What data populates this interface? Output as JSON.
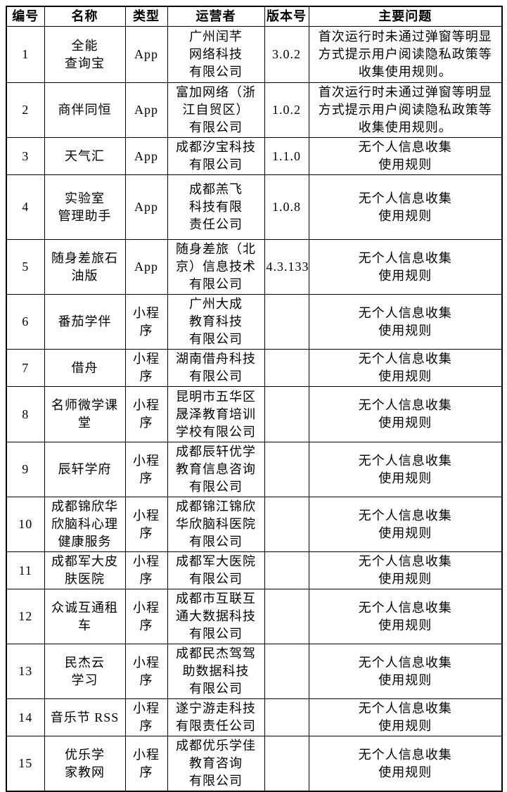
{
  "table": {
    "columns": [
      {
        "label": "编号"
      },
      {
        "label": "名称"
      },
      {
        "label": "类型"
      },
      {
        "label": "运营者"
      },
      {
        "label": "版本号"
      },
      {
        "label": "主要问题"
      }
    ],
    "rows": [
      {
        "number": "1",
        "name": "全能\n查询宝",
        "type": "App",
        "operator": "广州闰芊\n网络科技\n有限公司",
        "version": "3.0.2",
        "issue": "首次运行时未通过弹窗等明显\n方式提示用户阅读隐私政策等\n收集使用规则。"
      },
      {
        "number": "2",
        "name": "商伴同恒",
        "type": "App",
        "operator": "富加网络（浙\n江自贸区）\n有限公司",
        "version": "1.0.2",
        "issue": "首次运行时未通过弹窗等明显\n方式提示用户阅读隐私政策等\n收集使用规则。"
      },
      {
        "number": "3",
        "name": "天气汇",
        "type": "App",
        "operator": "成都汐宝科技\n有限公司",
        "version": "1.1.0",
        "issue": "无个人信息收集\n使用规则"
      },
      {
        "number": "4",
        "name": "实验室\n管理助手",
        "type": "App",
        "operator": "成都羔飞\n科技有限\n责任公司",
        "version": "1.0.8",
        "issue": "无个人信息收集\n使用规则"
      },
      {
        "number": "5",
        "name": "随身差旅石\n油版",
        "type": "App",
        "operator": "随身差旅（北\n京）信息技术\n有限公司",
        "version": "4.3.133",
        "issue": "无个人信息收集\n使用规则"
      },
      {
        "number": "6",
        "name": "番茄学伴",
        "type": "小程\n序",
        "operator": "广州大成\n教育科技\n有限公司",
        "version": "",
        "issue": "无个人信息收集\n使用规则"
      },
      {
        "number": "7",
        "name": "借舟",
        "type": "小程\n序",
        "operator": "湖南借舟科技\n有限公司",
        "version": "",
        "issue": "无个人信息收集\n使用规则"
      },
      {
        "number": "8",
        "name": "名师微学课\n堂",
        "type": "小程\n序",
        "operator": "昆明市五华区\n晟泽教育培训\n学校有限公司",
        "version": "",
        "issue": "无个人信息收集\n使用规则"
      },
      {
        "number": "9",
        "name": "辰轩学府",
        "type": "小程\n序",
        "operator": "成都辰轩优学\n教育信息咨询\n有限公司",
        "version": "",
        "issue": "无个人信息收集\n使用规则"
      },
      {
        "number": "10",
        "name": "成都锦欣华\n欣脑科心理\n健康服务",
        "type": "小程\n序",
        "operator": "成都锦江锦欣\n华欣脑科医院\n有限公司",
        "version": "",
        "issue": "无个人信息收集\n使用规则"
      },
      {
        "number": "11",
        "name": "成都军大皮\n肤医院",
        "type": "小程\n序",
        "operator": "成都军大医院\n有限公司",
        "version": "",
        "issue": "无个人信息收集\n使用规则"
      },
      {
        "number": "12",
        "name": "众诚互通租\n车",
        "type": "小程\n序",
        "operator": "成都市互联互\n通大数据科技\n有限公司",
        "version": "",
        "issue": "无个人信息收集\n使用规则"
      },
      {
        "number": "13",
        "name": "民杰云\n学习",
        "type": "小程\n序",
        "operator": "成都民杰驾驾\n助数据科技\n有限公司",
        "version": "",
        "issue": "无个人信息收集\n使用规则"
      },
      {
        "number": "14",
        "name": "音乐节 RSS",
        "type": "小程\n序",
        "operator": "遂宁游走科技\n有限责任公司",
        "version": "",
        "issue": "无个人信息收集\n使用规则"
      },
      {
        "number": "15",
        "name": "优乐学\n家教网",
        "type": "小程\n序",
        "operator": "成都优乐学佳\n教育咨询\n有限公司",
        "version": "",
        "issue": "无个人信息收集\n使用规则"
      }
    ]
  }
}
